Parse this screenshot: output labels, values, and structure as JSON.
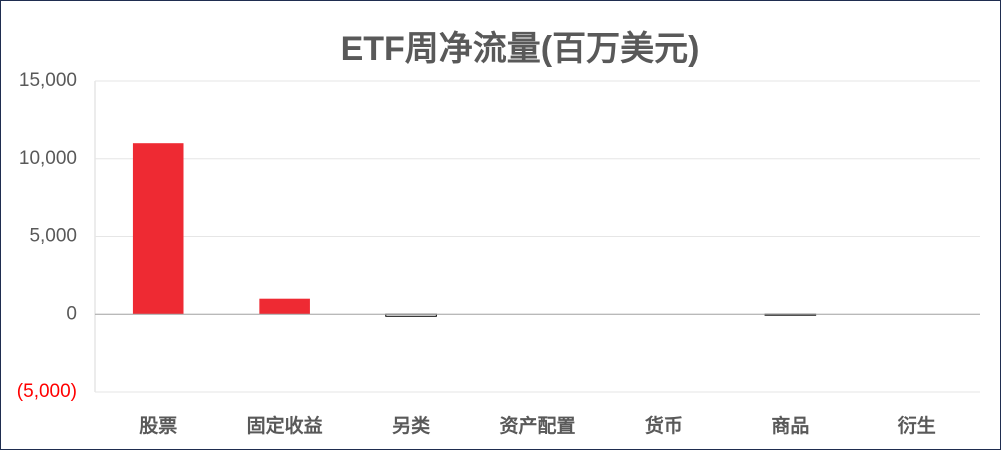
{
  "chart_data": {
    "type": "bar",
    "title": "ETF周净流量(百万美元)",
    "categories": [
      "股票",
      "固定收益",
      "另类",
      "资产配置",
      "货币",
      "商品",
      "衍生"
    ],
    "values": [
      11000,
      1000,
      -130,
      0,
      0,
      -60,
      0
    ],
    "color": "#ee2a33",
    "negative_color": "#ffffff",
    "ylim": [
      -5000,
      15000
    ],
    "yticks": [
      {
        "value": -5000,
        "label": "(5,000)"
      },
      0,
      {
        "value": 5000,
        "label": "5,000"
      },
      {
        "value": 10000,
        "label": "10,000"
      },
      {
        "value": 15000,
        "label": "15,000"
      }
    ],
    "negative_tick_color": "#ff0000",
    "grid": true
  }
}
